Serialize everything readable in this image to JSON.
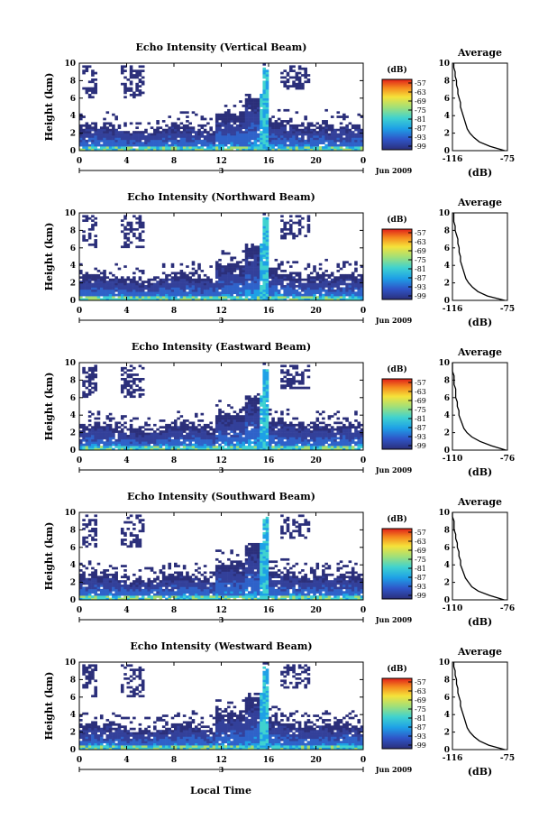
{
  "figure": {
    "xlabel": "Local Time",
    "date_label": "Jun 2009",
    "day_label": "3",
    "ylabel": "Height (km)",
    "avg_title": "Average",
    "avg_xlabel": "(dB)",
    "cb_title": "(dB)"
  },
  "chart_data": [
    {
      "type": "heatmap",
      "title": "Echo Intensity (Vertical Beam)",
      "xticks": [
        "0",
        "4",
        "8",
        "12",
        "16",
        "20",
        "0"
      ],
      "yticks": [
        "0",
        "2",
        "4",
        "6",
        "8",
        "10"
      ],
      "xlim": [
        0,
        24
      ],
      "ylim": [
        0,
        10
      ],
      "colorbar_ticks": [
        "-57",
        "-63",
        "-69",
        "-75",
        "-81",
        "-87",
        "-93",
        "-99"
      ],
      "average_profile": {
        "xticks": [
          "-116",
          "-75"
        ],
        "xlim": [
          -116,
          -75
        ],
        "yticks": [
          "0",
          "2",
          "4",
          "6",
          "8",
          "10"
        ],
        "height_km": [
          0,
          0.5,
          1,
          1.5,
          2,
          2.5,
          3,
          3.5,
          4,
          4.5,
          5,
          5.5,
          6,
          6.5,
          7,
          7.5,
          8,
          8.5,
          9,
          9.5,
          10
        ],
        "values_db": [
          -77,
          -88,
          -96,
          -100,
          -103,
          -105,
          -106,
          -107,
          -108,
          -109,
          -110,
          -110,
          -111,
          -112,
          -112,
          -113,
          -113,
          -114,
          -114,
          -115,
          -115
        ]
      }
    },
    {
      "type": "heatmap",
      "title": "Echo Intensity (Northward Beam)",
      "xticks": [
        "0",
        "4",
        "8",
        "12",
        "16",
        "20",
        "0"
      ],
      "yticks": [
        "0",
        "2",
        "4",
        "6",
        "8",
        "10"
      ],
      "xlim": [
        0,
        24
      ],
      "ylim": [
        0,
        10
      ],
      "colorbar_ticks": [
        "-57",
        "-63",
        "-69",
        "-75",
        "-81",
        "-87",
        "-93",
        "-99"
      ],
      "average_profile": {
        "xticks": [
          "-116",
          "-75"
        ],
        "xlim": [
          -116,
          -75
        ],
        "yticks": [
          "0",
          "2",
          "4",
          "6",
          "8",
          "10"
        ],
        "height_km": [
          0,
          0.5,
          1,
          1.5,
          2,
          2.5,
          3,
          3.5,
          4,
          4.5,
          5,
          5.5,
          6,
          6.5,
          7,
          7.5,
          8,
          8.5,
          9,
          9.5,
          10
        ],
        "values_db": [
          -77,
          -90,
          -97,
          -101,
          -104,
          -106,
          -107,
          -108,
          -109,
          -110,
          -110,
          -111,
          -111,
          -112,
          -112,
          -113,
          -114,
          -114,
          -115,
          -115,
          -115
        ]
      }
    },
    {
      "type": "heatmap",
      "title": "Echo Intensity (Eastward Beam)",
      "xticks": [
        "0",
        "4",
        "8",
        "12",
        "16",
        "20",
        "0"
      ],
      "yticks": [
        "0",
        "2",
        "4",
        "6",
        "8",
        "10"
      ],
      "xlim": [
        0,
        24
      ],
      "ylim": [
        0,
        10
      ],
      "colorbar_ticks": [
        "-57",
        "-63",
        "-69",
        "-75",
        "-81",
        "-87",
        "-93",
        "-99"
      ],
      "average_profile": {
        "xticks": [
          "-110",
          "-76"
        ],
        "xlim": [
          -110,
          -76
        ],
        "yticks": [
          "0",
          "2",
          "4",
          "6",
          "8",
          "10"
        ],
        "height_km": [
          0,
          0.5,
          1,
          1.5,
          2,
          2.5,
          3,
          3.5,
          4,
          4.5,
          5,
          5.5,
          6,
          6.5,
          7,
          7.5,
          8,
          8.5,
          9,
          9.5,
          10
        ],
        "values_db": [
          -77,
          -86,
          -93,
          -98,
          -101,
          -103,
          -104,
          -105,
          -106,
          -106,
          -107,
          -107,
          -108,
          -108,
          -108,
          -109,
          -109,
          -109,
          -110,
          -110,
          -110
        ]
      }
    },
    {
      "type": "heatmap",
      "title": "Echo Intensity (Southward Beam)",
      "xticks": [
        "0",
        "4",
        "8",
        "12",
        "16",
        "20",
        "0"
      ],
      "yticks": [
        "0",
        "2",
        "4",
        "6",
        "8",
        "10"
      ],
      "xlim": [
        0,
        24
      ],
      "ylim": [
        0,
        10
      ],
      "colorbar_ticks": [
        "-57",
        "-63",
        "-69",
        "-75",
        "-81",
        "-87",
        "-93",
        "-99"
      ],
      "average_profile": {
        "xticks": [
          "-110",
          "-76"
        ],
        "xlim": [
          -110,
          -76
        ],
        "yticks": [
          "0",
          "2",
          "4",
          "6",
          "8",
          "10"
        ],
        "height_km": [
          0,
          0.5,
          1,
          1.5,
          2,
          2.5,
          3,
          3.5,
          4,
          4.5,
          5,
          5.5,
          6,
          6.5,
          7,
          7.5,
          8,
          8.5,
          9,
          9.5,
          10
        ],
        "values_db": [
          -78,
          -87,
          -94,
          -98,
          -100,
          -102,
          -103,
          -104,
          -105,
          -105,
          -106,
          -106,
          -107,
          -107,
          -108,
          -108,
          -109,
          -109,
          -109,
          -110,
          -110
        ]
      }
    },
    {
      "type": "heatmap",
      "title": "Echo Intensity (Westward Beam)",
      "xticks": [
        "0",
        "4",
        "8",
        "12",
        "16",
        "20",
        "0"
      ],
      "yticks": [
        "0",
        "2",
        "4",
        "6",
        "8",
        "10"
      ],
      "xlim": [
        0,
        24
      ],
      "ylim": [
        0,
        10
      ],
      "colorbar_ticks": [
        "-57",
        "-63",
        "-69",
        "-75",
        "-81",
        "-87",
        "-93",
        "-99"
      ],
      "average_profile": {
        "xticks": [
          "-116",
          "-75"
        ],
        "xlim": [
          -116,
          -75
        ],
        "yticks": [
          "0",
          "2",
          "4",
          "6",
          "8",
          "10"
        ],
        "height_km": [
          0,
          0.5,
          1,
          1.5,
          2,
          2.5,
          3,
          3.5,
          4,
          4.5,
          5,
          5.5,
          6,
          6.5,
          7,
          7.5,
          8,
          8.5,
          9,
          9.5,
          10
        ],
        "values_db": [
          -77,
          -89,
          -96,
          -100,
          -103,
          -105,
          -106,
          -107,
          -108,
          -109,
          -110,
          -110,
          -111,
          -112,
          -112,
          -113,
          -113,
          -114,
          -114,
          -115,
          -115
        ]
      }
    }
  ]
}
